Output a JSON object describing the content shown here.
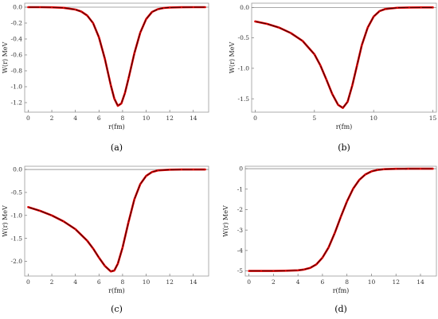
{
  "chart_data": [
    {
      "type": "line",
      "panel_label": "(a)",
      "xlabel": "r(fm)",
      "ylabel": "W(r) MeV",
      "xlim": [
        -0.3,
        15.3
      ],
      "ylim": [
        -1.32,
        0.05
      ],
      "xticks": [
        0,
        2,
        4,
        6,
        8,
        10,
        12,
        14
      ],
      "yticks": [
        0.0,
        -0.2,
        -0.4,
        -0.6,
        -0.8,
        -1.0,
        -1.2
      ],
      "ytick_labels": [
        "0.0",
        "-0.2",
        "-0.4",
        "-0.6",
        "-0.8",
        "-1.0",
        "-1.2"
      ],
      "series": [
        {
          "color": "#e00000",
          "x": [
            0,
            1,
            2,
            3,
            4,
            4.5,
            5,
            5.5,
            6,
            6.5,
            7,
            7.3,
            7.6,
            7.9,
            8.2,
            8.5,
            9,
            9.5,
            10,
            10.5,
            11,
            11.5,
            12,
            13,
            14,
            15
          ],
          "values": [
            0.0,
            0.0,
            -0.002,
            -0.008,
            -0.03,
            -0.055,
            -0.105,
            -0.2,
            -0.38,
            -0.65,
            -0.98,
            -1.15,
            -1.24,
            -1.21,
            -1.08,
            -0.9,
            -0.58,
            -0.32,
            -0.15,
            -0.06,
            -0.025,
            -0.01,
            -0.004,
            -0.001,
            0.0,
            0.0
          ]
        }
      ]
    },
    {
      "type": "line",
      "panel_label": "(b)",
      "xlabel": "r(fm)",
      "ylabel": "W(r) MeV",
      "xlim": [
        -0.3,
        15.3
      ],
      "ylim": [
        -1.72,
        0.07
      ],
      "xticks": [
        0,
        5,
        10,
        15
      ],
      "yticks": [
        0.0,
        -0.5,
        -1.0,
        -1.5
      ],
      "ytick_labels": [
        "0.0",
        "-0.5",
        "-1.0",
        "-1.5"
      ],
      "series": [
        {
          "color": "#e00000",
          "x": [
            0,
            1,
            2,
            3,
            4,
            5,
            5.5,
            6,
            6.5,
            7,
            7.4,
            7.8,
            8.2,
            8.6,
            9,
            9.5,
            10,
            10.5,
            11,
            12,
            13,
            14,
            15
          ],
          "values": [
            -0.23,
            -0.27,
            -0.33,
            -0.42,
            -0.55,
            -0.77,
            -0.95,
            -1.18,
            -1.42,
            -1.6,
            -1.65,
            -1.55,
            -1.28,
            -0.95,
            -0.62,
            -0.33,
            -0.15,
            -0.06,
            -0.025,
            -0.005,
            -0.001,
            0.0,
            0.0
          ]
        }
      ]
    },
    {
      "type": "line",
      "panel_label": "(c)",
      "xlabel": "r(fm)",
      "ylabel": "W(r) MeV",
      "xlim": [
        -0.3,
        15.3
      ],
      "ylim": [
        -2.32,
        0.07
      ],
      "xticks": [
        0,
        2,
        4,
        6,
        8,
        10,
        12,
        14
      ],
      "yticks": [
        0.0,
        -0.5,
        -1.0,
        -1.5,
        -2.0
      ],
      "ytick_labels": [
        "0.0",
        "-0.5",
        "-1.0",
        "-1.5",
        "-2.0"
      ],
      "series": [
        {
          "color": "#e00000",
          "x": [
            0,
            1,
            2,
            3,
            4,
            5,
            5.5,
            6,
            6.5,
            7,
            7.3,
            7.6,
            8,
            8.5,
            9,
            9.5,
            10,
            10.5,
            11,
            12,
            13,
            14,
            15
          ],
          "values": [
            -0.82,
            -0.9,
            -1.0,
            -1.13,
            -1.3,
            -1.55,
            -1.72,
            -1.92,
            -2.1,
            -2.22,
            -2.2,
            -2.05,
            -1.7,
            -1.15,
            -0.65,
            -0.32,
            -0.14,
            -0.055,
            -0.02,
            -0.004,
            -0.001,
            0.0,
            0.0
          ]
        }
      ]
    },
    {
      "type": "line",
      "panel_label": "(d)",
      "xlabel": "r(fm)",
      "ylabel": "W(r) MeV",
      "xlim": [
        -0.3,
        15.3
      ],
      "ylim": [
        -5.25,
        0.12
      ],
      "xticks": [
        0,
        2,
        4,
        6,
        8,
        10,
        12,
        14
      ],
      "yticks": [
        0,
        -1,
        -2,
        -3,
        -4,
        -5
      ],
      "ytick_labels": [
        "0",
        "-1",
        "-2",
        "-3",
        "-4",
        "-5"
      ],
      "series": [
        {
          "color": "#e00000",
          "x": [
            0,
            1,
            2,
            3,
            4,
            4.5,
            5,
            5.5,
            6,
            6.5,
            7,
            7.5,
            8,
            8.5,
            9,
            9.5,
            10,
            10.5,
            11,
            12,
            13,
            14,
            15
          ],
          "values": [
            -5.0,
            -5.0,
            -5.0,
            -4.99,
            -4.97,
            -4.93,
            -4.85,
            -4.68,
            -4.35,
            -3.85,
            -3.15,
            -2.35,
            -1.6,
            -0.98,
            -0.55,
            -0.28,
            -0.13,
            -0.06,
            -0.025,
            -0.005,
            -0.001,
            0.0,
            0.0
          ]
        }
      ]
    }
  ]
}
